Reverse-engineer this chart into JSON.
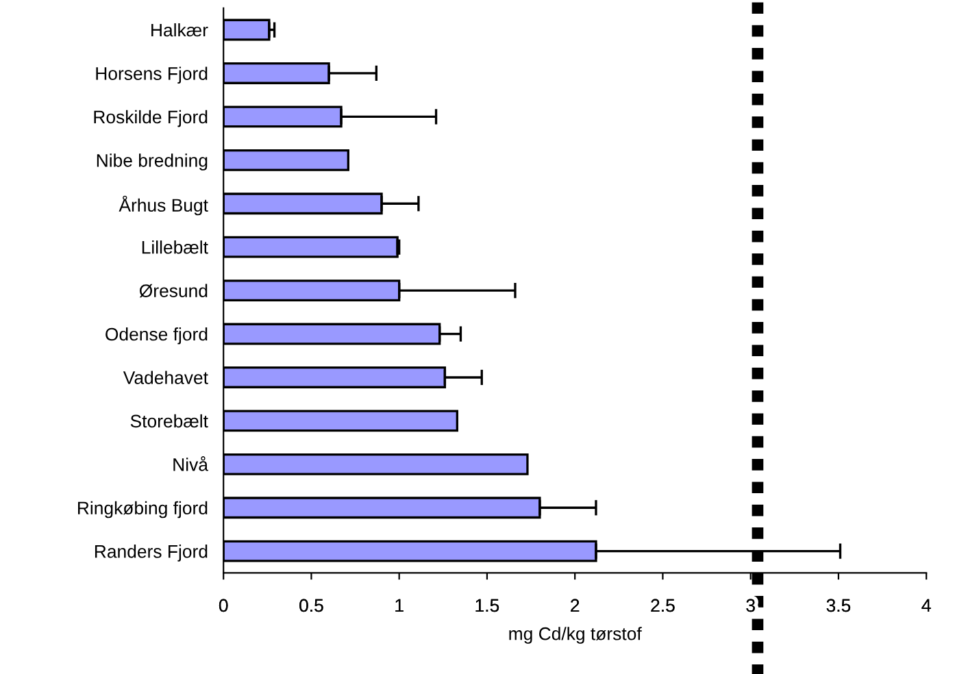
{
  "chart_data": {
    "type": "bar",
    "orientation": "horizontal",
    "xlabel": "mg Cd/kg tørstof",
    "categories": [
      "Halkær",
      "Horsens Fjord",
      "Roskilde Fjord",
      "Nibe bredning",
      "Århus Bugt",
      "Lillebælt",
      "Øresund",
      "Odense fjord",
      "Vadehavet",
      "Storebælt",
      "Nivå",
      "Ringkøbing fjord",
      "Randers Fjord"
    ],
    "color": "#9999ff",
    "values": [
      0.26,
      0.6,
      0.67,
      0.71,
      0.9,
      0.99,
      1.0,
      1.23,
      1.26,
      1.33,
      1.73,
      1.8,
      2.12
    ],
    "errors": [
      [
        0.26,
        0.29
      ],
      [
        0.6,
        0.87
      ],
      [
        0.67,
        1.21
      ],
      null,
      [
        0.9,
        1.11
      ],
      [
        0.99,
        1.0
      ],
      [
        1.0,
        1.66
      ],
      [
        1.23,
        1.35
      ],
      [
        1.26,
        1.47
      ],
      null,
      null,
      [
        1.8,
        2.12
      ],
      [
        2.12,
        3.51
      ]
    ],
    "xlim": [
      0,
      4
    ],
    "xticks": [
      0,
      0.5,
      1,
      1.5,
      2,
      2.5,
      3,
      3.5,
      4
    ],
    "ref_lines": [
      {
        "axis": "x",
        "value": 3.04,
        "color": "#000000",
        "line_style": "dotted"
      }
    ],
    "grid": false
  }
}
